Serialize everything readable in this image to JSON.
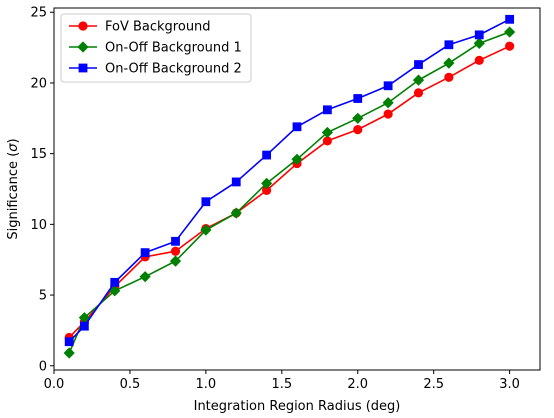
{
  "chart_data": {
    "type": "line",
    "xlabel": "Integration Region Radius (deg)",
    "ylabel_prefix": "Significance (",
    "ylabel_sigma": "σ",
    "ylabel_suffix": ")",
    "xlim": [
      0.0,
      3.2
    ],
    "ylim": [
      -0.3,
      25.3
    ],
    "xticks": [
      0.0,
      0.5,
      1.0,
      1.5,
      2.0,
      2.5,
      3.0
    ],
    "xtick_labels": [
      "0.0",
      "0.5",
      "1.0",
      "1.5",
      "2.0",
      "2.5",
      "3.0"
    ],
    "yticks": [
      0,
      5,
      10,
      15,
      20,
      25
    ],
    "ytick_labels": [
      "0",
      "5",
      "10",
      "15",
      "20",
      "25"
    ],
    "grid": false,
    "legend_position": "top-left",
    "x": [
      0.1,
      0.2,
      0.4,
      0.6,
      0.8,
      1.0,
      1.2,
      1.4,
      1.6,
      1.8,
      2.0,
      2.2,
      2.4,
      2.6,
      2.8,
      3.0
    ],
    "series": [
      {
        "name": "FoV Background",
        "color": "#ff0000",
        "marker": "circle",
        "values": [
          2.0,
          3.1,
          5.6,
          7.7,
          8.1,
          9.7,
          10.8,
          12.4,
          14.3,
          15.9,
          16.7,
          17.8,
          19.3,
          20.4,
          21.6,
          22.6
        ]
      },
      {
        "name": "On-Off Background 1",
        "color": "#008000",
        "marker": "diamond",
        "values": [
          0.9,
          3.4,
          5.3,
          6.3,
          7.4,
          9.6,
          10.8,
          12.9,
          14.6,
          16.5,
          17.5,
          18.6,
          20.2,
          21.4,
          22.8,
          23.6
        ]
      },
      {
        "name": "On-Off Background 2",
        "color": "#0000ff",
        "marker": "square",
        "values": [
          1.7,
          2.8,
          5.9,
          8.0,
          8.8,
          11.6,
          13.0,
          14.9,
          16.9,
          18.1,
          18.9,
          19.8,
          21.3,
          22.7,
          23.4,
          24.5
        ]
      }
    ]
  }
}
